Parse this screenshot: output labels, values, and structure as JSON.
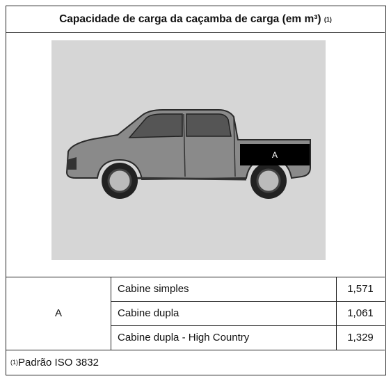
{
  "table": {
    "title": "Capacidade de carga da caçamba de carga (em m³)",
    "title_note": "(1)",
    "image_label": "A",
    "group": "A",
    "rows": [
      [
        "Cabine simples",
        "1,571"
      ],
      [
        "Cabine dupla",
        "1,061"
      ],
      [
        "Cabine dupla - High Country",
        "1,329"
      ]
    ],
    "footnote_mark": "(1)",
    "footnote": "Padrão ISO 3832"
  }
}
